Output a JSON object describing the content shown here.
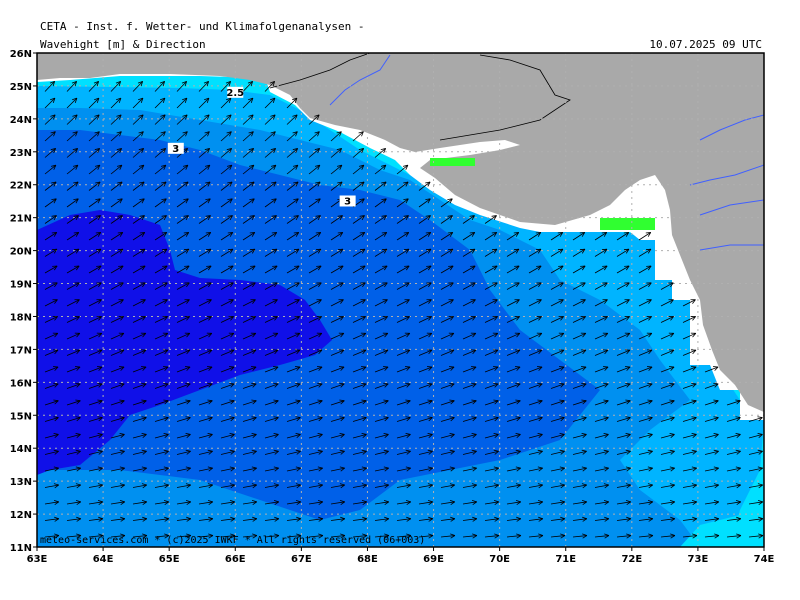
{
  "header": {
    "title": "CETA - Inst. f. Wetter- und Klimafolgenanalysen -",
    "subtitle": "Wavehight [m] & Direction",
    "timestamp": "10.07.2025 09 UTC"
  },
  "footer": {
    "credit": "meteo-services.com * (c)2025 IWKF * All rights reserved (06+003)"
  },
  "axes": {
    "lon_labels": [
      "63E",
      "64E",
      "65E",
      "66E",
      "67E",
      "68E",
      "69E",
      "70E",
      "71E",
      "72E",
      "73E",
      "74E"
    ],
    "lat_labels": [
      "26N",
      "25N",
      "24N",
      "23N",
      "22N",
      "21N",
      "20N",
      "19N",
      "18N",
      "17N",
      "16N",
      "15N",
      "14N",
      "13N",
      "12N",
      "11N"
    ]
  },
  "contour_labels": [
    {
      "text": "2.5",
      "lon": 66.0,
      "lat": 24.7
    },
    {
      "text": "3",
      "lon": 65.1,
      "lat": 23.0
    },
    {
      "text": "3",
      "lon": 67.7,
      "lat": 21.4
    }
  ],
  "colors": {
    "land": "#a9a9a9",
    "coast_white": "#ffffff",
    "lvl_2": "#00e0ff",
    "lvl_2_5": "#00b4ff",
    "lvl_3": "#0090f0",
    "lvl_3_5": "#0060e8",
    "lvl_4": "#1010e8",
    "green": "#30ff30",
    "river": "#4060ff"
  },
  "chart_data": {
    "type": "heatmap",
    "title": "Wavehight [m] & Direction",
    "lon_range": [
      63,
      74
    ],
    "lat_range": [
      11,
      26
    ],
    "grid": true,
    "wave_direction": "arrows toward NE in north, toward E in south"
  }
}
